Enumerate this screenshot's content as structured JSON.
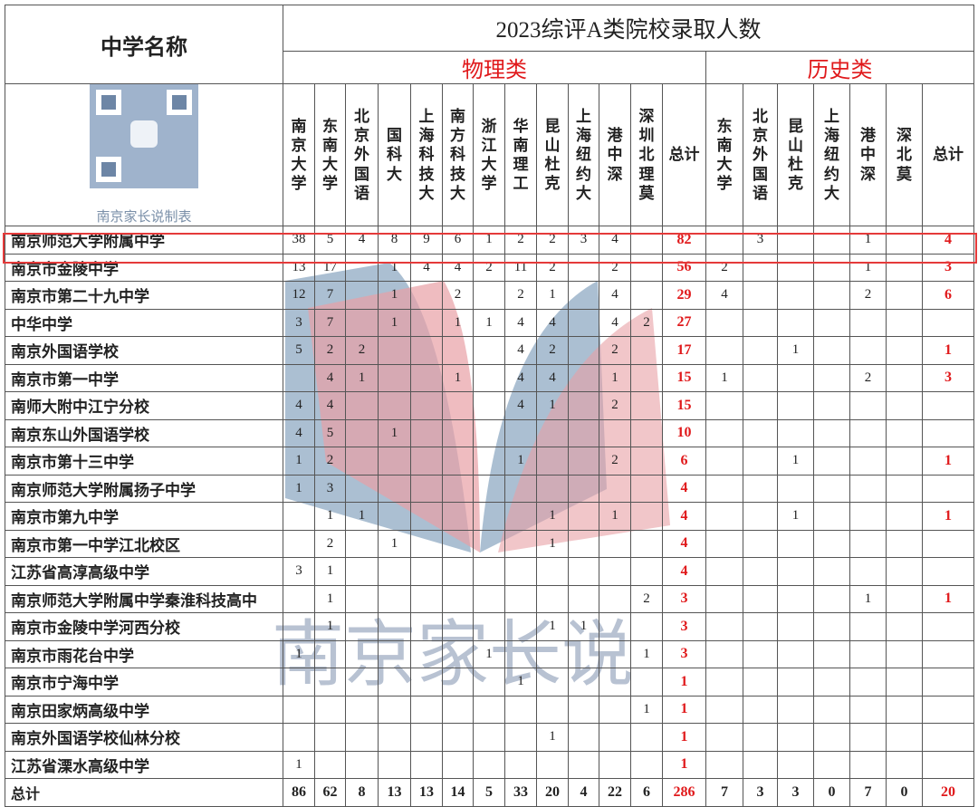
{
  "header": {
    "name_col": "中学名称",
    "title": "2023综评A类院校录取人数",
    "qr_caption": "南京家长说制表"
  },
  "groups": [
    {
      "name": "物理类",
      "columns": [
        "南京大学",
        "东南大学",
        "北京外国语",
        "国科大",
        "上海科技大",
        "南方科技大",
        "浙江大学",
        "华南理工",
        "昆山杜克",
        "上海纽约大",
        "港中深",
        "深圳北理莫",
        "总计"
      ]
    },
    {
      "name": "历史类",
      "columns": [
        "东南大学",
        "北京外国语",
        "昆山杜克",
        "上海纽约大",
        "港中深",
        "深北莫",
        "总计"
      ]
    }
  ],
  "rows": [
    {
      "school": "南京师范大学附属中学",
      "values": [
        38,
        5,
        4,
        8,
        9,
        6,
        1,
        2,
        2,
        3,
        4,
        null,
        82,
        null,
        3,
        null,
        null,
        1,
        null,
        4
      ]
    },
    {
      "school": "南京市金陵中学",
      "values": [
        13,
        17,
        null,
        1,
        4,
        4,
        2,
        11,
        2,
        null,
        2,
        null,
        56,
        2,
        null,
        null,
        null,
        1,
        null,
        3
      ]
    },
    {
      "school": "南京市第二十九中学",
      "values": [
        12,
        7,
        null,
        1,
        null,
        2,
        null,
        2,
        1,
        null,
        4,
        null,
        29,
        4,
        null,
        null,
        null,
        2,
        null,
        6
      ]
    },
    {
      "school": "中华中学",
      "values": [
        3,
        7,
        null,
        1,
        null,
        1,
        1,
        4,
        4,
        null,
        4,
        2,
        27,
        null,
        null,
        null,
        null,
        null,
        null,
        null
      ]
    },
    {
      "school": "南京外国语学校",
      "values": [
        5,
        2,
        2,
        null,
        null,
        null,
        null,
        4,
        2,
        null,
        2,
        null,
        17,
        null,
        null,
        1,
        null,
        null,
        null,
        1
      ]
    },
    {
      "school": "南京市第一中学",
      "values": [
        null,
        4,
        1,
        null,
        null,
        1,
        null,
        4,
        4,
        null,
        1,
        null,
        15,
        1,
        null,
        null,
        null,
        2,
        null,
        3
      ]
    },
    {
      "school": "南师大附中江宁分校",
      "values": [
        4,
        4,
        null,
        null,
        null,
        null,
        null,
        4,
        1,
        null,
        2,
        null,
        15,
        null,
        null,
        null,
        null,
        null,
        null,
        null
      ]
    },
    {
      "school": "南京东山外国语学校",
      "values": [
        4,
        5,
        null,
        1,
        null,
        null,
        null,
        null,
        null,
        null,
        null,
        null,
        10,
        null,
        null,
        null,
        null,
        null,
        null,
        null
      ]
    },
    {
      "school": "南京市第十三中学",
      "values": [
        1,
        2,
        null,
        null,
        null,
        null,
        null,
        1,
        null,
        null,
        2,
        null,
        6,
        null,
        null,
        1,
        null,
        null,
        null,
        1
      ]
    },
    {
      "school": "南京师范大学附属扬子中学",
      "values": [
        1,
        3,
        null,
        null,
        null,
        null,
        null,
        null,
        null,
        null,
        null,
        null,
        4,
        null,
        null,
        null,
        null,
        null,
        null,
        null
      ]
    },
    {
      "school": "南京市第九中学",
      "values": [
        null,
        1,
        1,
        null,
        null,
        null,
        null,
        null,
        1,
        null,
        1,
        null,
        4,
        null,
        null,
        1,
        null,
        null,
        null,
        1
      ]
    },
    {
      "school": "南京市第一中学江北校区",
      "values": [
        null,
        2,
        null,
        1,
        null,
        null,
        null,
        null,
        1,
        null,
        null,
        null,
        4,
        null,
        null,
        null,
        null,
        null,
        null,
        null
      ]
    },
    {
      "school": "江苏省高淳高级中学",
      "values": [
        3,
        1,
        null,
        null,
        null,
        null,
        null,
        null,
        null,
        null,
        null,
        null,
        4,
        null,
        null,
        null,
        null,
        null,
        null,
        null
      ]
    },
    {
      "school": "南京师范大学附属中学秦淮科技高中",
      "values": [
        null,
        1,
        null,
        null,
        null,
        null,
        null,
        null,
        null,
        null,
        null,
        2,
        3,
        null,
        null,
        null,
        null,
        1,
        null,
        1
      ]
    },
    {
      "school": "南京市金陵中学河西分校",
      "values": [
        null,
        1,
        null,
        null,
        null,
        null,
        null,
        null,
        1,
        1,
        null,
        null,
        3,
        null,
        null,
        null,
        null,
        null,
        null,
        null
      ]
    },
    {
      "school": "南京市雨花台中学",
      "values": [
        1,
        null,
        null,
        null,
        null,
        null,
        1,
        null,
        null,
        null,
        null,
        1,
        3,
        null,
        null,
        null,
        null,
        null,
        null,
        null
      ]
    },
    {
      "school": "南京市宁海中学",
      "values": [
        null,
        null,
        null,
        null,
        null,
        null,
        null,
        1,
        null,
        null,
        null,
        null,
        1,
        null,
        null,
        null,
        null,
        null,
        null,
        null
      ]
    },
    {
      "school": "南京田家炳高级中学",
      "values": [
        null,
        null,
        null,
        null,
        null,
        null,
        null,
        null,
        null,
        null,
        null,
        1,
        1,
        null,
        null,
        null,
        null,
        null,
        null,
        null
      ]
    },
    {
      "school": "南京外国语学校仙林分校",
      "values": [
        null,
        null,
        null,
        null,
        null,
        null,
        null,
        null,
        1,
        null,
        null,
        null,
        1,
        null,
        null,
        null,
        null,
        null,
        null,
        null
      ]
    },
    {
      "school": "江苏省溧水高级中学",
      "values": [
        1,
        null,
        null,
        null,
        null,
        null,
        null,
        null,
        null,
        null,
        null,
        null,
        1,
        null,
        null,
        null,
        null,
        null,
        null,
        null
      ]
    },
    {
      "school": "总计",
      "values": [
        86,
        62,
        8,
        13,
        13,
        14,
        5,
        33,
        20,
        4,
        22,
        6,
        286,
        7,
        3,
        3,
        0,
        7,
        0,
        20
      ]
    }
  ],
  "watermark": "南京家长说"
}
